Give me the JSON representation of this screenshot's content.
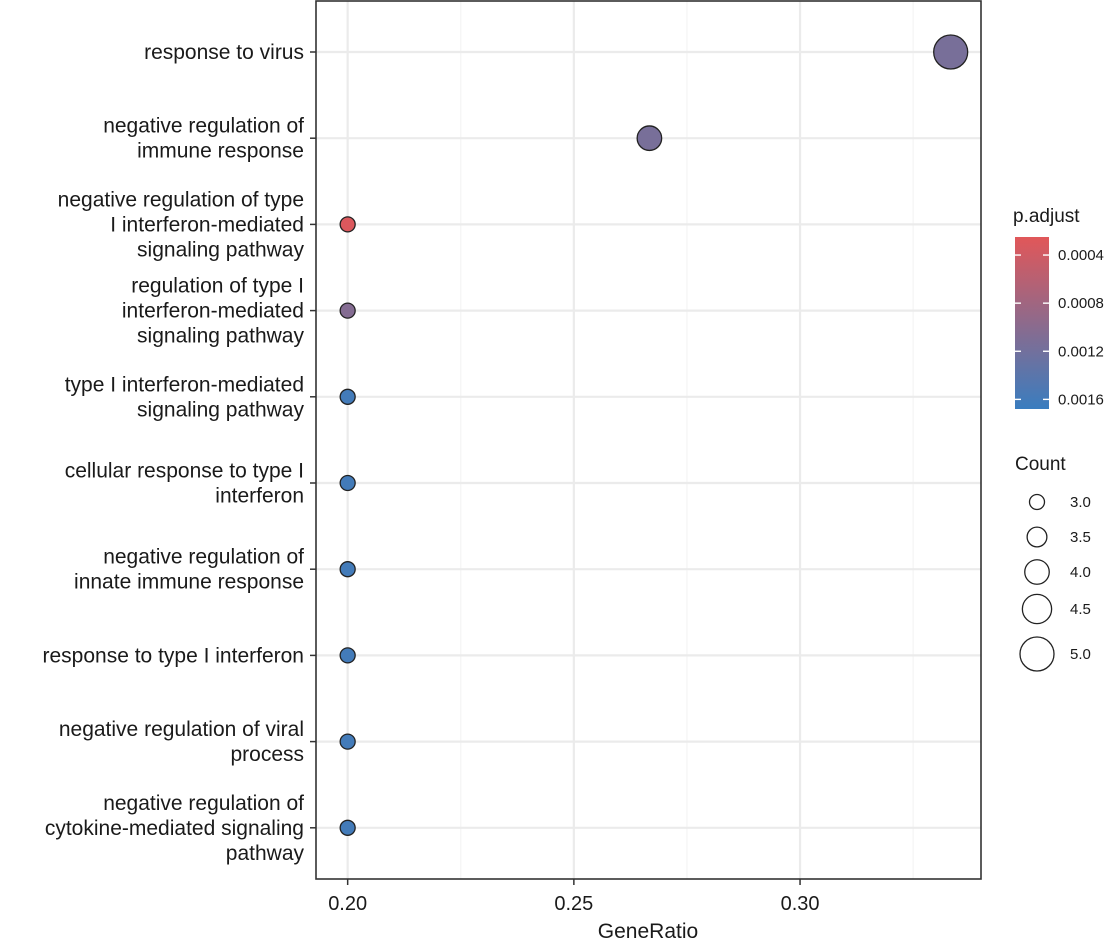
{
  "chart_data": {
    "type": "scatter",
    "title": "",
    "xlabel": "GeneRatio",
    "ylabel": "",
    "xlim": [
      0.193,
      0.34
    ],
    "x_ticks": [
      0.2,
      0.25,
      0.3
    ],
    "x_tick_labels": [
      "0.20",
      "0.25",
      "0.30"
    ],
    "grid": true,
    "categories": [
      "response to virus",
      "negative regulation of immune response",
      "negative regulation of type I interferon-mediated signaling pathway",
      "regulation of type I interferon-mediated signaling pathway",
      "type I interferon-mediated signaling pathway",
      "cellular response to type I interferon",
      "negative regulation of innate immune response",
      "response to type I interferon",
      "negative regulation of viral process",
      "negative regulation of cytokine-mediated signaling pathway"
    ],
    "category_lines": [
      [
        "response to virus"
      ],
      [
        "negative regulation of",
        "immune response"
      ],
      [
        "negative regulation of type",
        "I interferon-mediated",
        "signaling pathway"
      ],
      [
        "regulation of type I",
        "interferon-mediated",
        "signaling pathway"
      ],
      [
        "type I interferon-mediated",
        "signaling pathway"
      ],
      [
        "cellular response to type I",
        "interferon"
      ],
      [
        "negative regulation of",
        "innate immune response"
      ],
      [
        "response to type I interferon"
      ],
      [
        "negative regulation of viral",
        "process"
      ],
      [
        "negative regulation of",
        "cytokine-mediated signaling",
        "pathway"
      ]
    ],
    "points": [
      {
        "x": 0.3333,
        "count": 5,
        "p_adjust": 0.00115
      },
      {
        "x": 0.2667,
        "count": 4,
        "p_adjust": 0.00115
      },
      {
        "x": 0.2,
        "count": 3,
        "p_adjust": 0.0003
      },
      {
        "x": 0.2,
        "count": 3,
        "p_adjust": 0.00105
      },
      {
        "x": 0.2,
        "count": 3,
        "p_adjust": 0.0016
      },
      {
        "x": 0.2,
        "count": 3,
        "p_adjust": 0.0016
      },
      {
        "x": 0.2,
        "count": 3,
        "p_adjust": 0.0016
      },
      {
        "x": 0.2,
        "count": 3,
        "p_adjust": 0.0016
      },
      {
        "x": 0.2,
        "count": 3,
        "p_adjust": 0.0016
      },
      {
        "x": 0.2,
        "count": 3,
        "p_adjust": 0.0016
      }
    ],
    "color_legend": {
      "title": "p.adjust",
      "range": [
        0.00025,
        0.00168
      ],
      "ticks": [
        0.0004,
        0.0008,
        0.0012,
        0.0016
      ],
      "tick_labels": [
        "0.0004",
        "0.0008",
        "0.0012",
        "0.0016"
      ],
      "low_color": "#e15759",
      "high_color": "#3a7dbf"
    },
    "size_legend": {
      "title": "Count",
      "values": [
        3,
        3.5,
        4,
        4.5,
        5
      ],
      "labels": [
        "3.0",
        "3.5",
        "4.0",
        "4.5",
        "5.0"
      ]
    },
    "colors": {
      "grid_major": "#ebebeb",
      "grid_minor": "#f4f4f4",
      "panel_border": "#333333",
      "point_outline": "#222222"
    }
  }
}
